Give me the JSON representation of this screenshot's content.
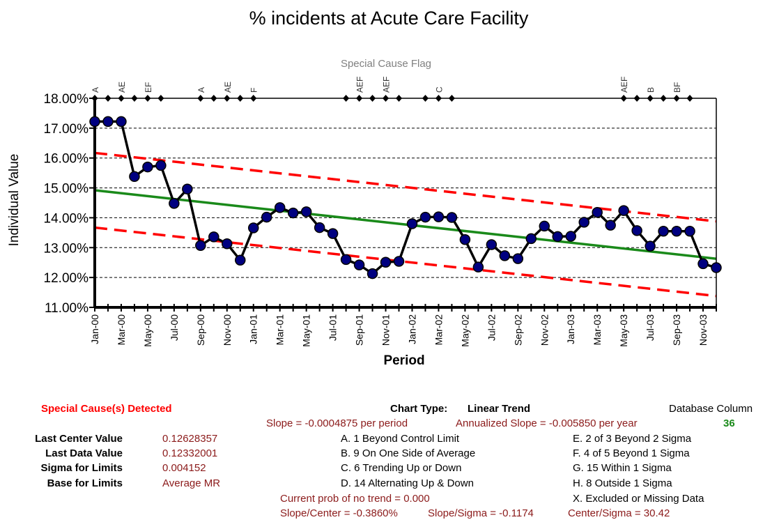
{
  "chart_data": {
    "type": "line",
    "title": "% incidents at Acute Care Facility",
    "subtitle": "Special Cause Flag",
    "xlabel": "Period",
    "ylabel": "Individual Value",
    "ylim": [
      0.11,
      0.18
    ],
    "y_ticks": [
      "11.00%",
      "12.00%",
      "13.00%",
      "14.00%",
      "15.00%",
      "16.00%",
      "17.00%",
      "18.00%"
    ],
    "x_ticks": [
      "Jan-00",
      "Mar-00",
      "May-00",
      "Jul-00",
      "Sep-00",
      "Nov-00",
      "Jan-01",
      "Mar-01",
      "May-01",
      "Jul-01",
      "Sep-01",
      "Nov-01",
      "Jan-02",
      "Mar-02",
      "May-02",
      "Jul-02",
      "Sep-02",
      "Nov-02",
      "Jan-03",
      "Mar-03",
      "May-03",
      "Jul-03",
      "Sep-03",
      "Nov-03"
    ],
    "grid": true,
    "series": [
      {
        "values": [
          0.1722,
          0.1722,
          0.1722,
          0.1538,
          0.157,
          0.1575,
          0.1448,
          0.1496,
          0.1307,
          0.1336,
          0.1313,
          0.1258,
          0.1366,
          0.1402,
          0.1434,
          0.1416,
          0.142,
          0.1367,
          0.1347,
          0.126,
          0.1242,
          0.1213,
          0.1251,
          0.1254,
          0.138,
          0.1402,
          0.1403,
          0.1401,
          0.1327,
          0.1235,
          0.131,
          0.1273,
          0.1263,
          0.133,
          0.1372,
          0.1337,
          0.1338,
          0.1385,
          0.1418,
          0.1375,
          0.1424,
          0.1357,
          0.1305,
          0.1355,
          0.1355,
          0.1355,
          0.1246,
          0.1233
        ]
      }
    ],
    "trend": {
      "start": 0.1492,
      "end": 0.12628357
    },
    "upper_limit": {
      "start": 0.1617,
      "end": 0.1388
    },
    "lower_limit": {
      "start": 0.1367,
      "end": 0.1138
    },
    "flags": [
      {
        "idx": 0,
        "label": "A"
      },
      {
        "idx": 1,
        "label": ""
      },
      {
        "idx": 2,
        "label": "AE"
      },
      {
        "idx": 3,
        "label": ""
      },
      {
        "idx": 4,
        "label": "EF"
      },
      {
        "idx": 5,
        "label": ""
      },
      {
        "idx": 8,
        "label": "A"
      },
      {
        "idx": 9,
        "label": ""
      },
      {
        "idx": 10,
        "label": "AE"
      },
      {
        "idx": 11,
        "label": ""
      },
      {
        "idx": 12,
        "label": "F"
      },
      {
        "idx": 19,
        "label": ""
      },
      {
        "idx": 20,
        "label": "AEF"
      },
      {
        "idx": 21,
        "label": ""
      },
      {
        "idx": 22,
        "label": "AEF"
      },
      {
        "idx": 23,
        "label": ""
      },
      {
        "idx": 25,
        "label": ""
      },
      {
        "idx": 26,
        "label": "C"
      },
      {
        "idx": 27,
        "label": ""
      },
      {
        "idx": 40,
        "label": "AEF"
      },
      {
        "idx": 41,
        "label": ""
      },
      {
        "idx": 42,
        "label": "B"
      },
      {
        "idx": 43,
        "label": ""
      },
      {
        "idx": 44,
        "label": "BF"
      },
      {
        "idx": 45,
        "label": ""
      }
    ],
    "colors": {
      "data_line": "#000000",
      "marker_fill": "#000080",
      "trend": "#1a8a1a",
      "limits": "#ff0000",
      "flag_marker": "#000000"
    }
  },
  "footer": {
    "special_cause": "Special Cause(s) Detected",
    "chart_type_label": "Chart Type:",
    "chart_type_value": "Linear Trend",
    "database_column_label": "Database Column",
    "database_column_value": "36",
    "slope": "Slope = -0.0004875 per period",
    "annualized_slope": "Annualized Slope = -0.005850 per year",
    "stats": [
      {
        "label": "Last Center Value",
        "value": "0.12628357"
      },
      {
        "label": "Last Data Value",
        "value": "0.12332001"
      },
      {
        "label": "Sigma for Limits",
        "value": "0.004152"
      },
      {
        "label": "Base for Limits",
        "value": "Average MR"
      }
    ],
    "rules_left": [
      "A.  1 Beyond Control Limit",
      "B.  9 On One Side of Average",
      "C.  6 Trending Up or Down",
      "D.  14 Alternating  Up & Down"
    ],
    "rules_right": [
      "E.  2 of 3 Beyond 2 Sigma",
      "F.  4 of 5 Beyond 1 Sigma",
      "G.  15 Within 1 Sigma",
      "H.  8 Outside 1 Sigma",
      "X.  Excluded or Missing Data"
    ],
    "prob_no_trend": "Current prob of no trend = 0.000",
    "slope_center": "Slope/Center = -0.3860%",
    "slope_sigma": "Slope/Sigma = -0.1174",
    "center_sigma": "Center/Sigma = 30.42"
  }
}
